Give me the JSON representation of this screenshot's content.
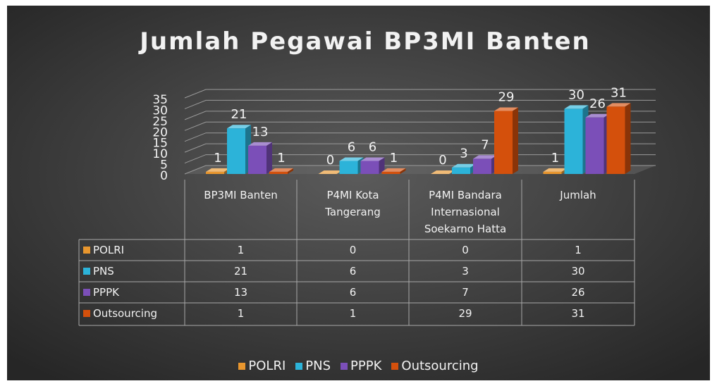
{
  "chart_data": {
    "type": "bar3d",
    "title": "Jumlah Pegawai BP3MI Banten",
    "categories": [
      "BP3MI Banten",
      "P4MI Kota Tangerang",
      "P4MI Bandara Internasional Soekarno Hatta",
      "Jumlah"
    ],
    "series": [
      {
        "name": "POLRI",
        "color": "#e8962e",
        "values": [
          1,
          0,
          0,
          1
        ]
      },
      {
        "name": "PNS",
        "color": "#2cb3d9",
        "values": [
          21,
          6,
          3,
          30
        ]
      },
      {
        "name": "PPPK",
        "color": "#7b4fb8",
        "values": [
          13,
          6,
          7,
          26
        ]
      },
      {
        "name": "Outsourcing",
        "color": "#d4500c",
        "values": [
          1,
          1,
          29,
          31
        ]
      }
    ],
    "ylim": [
      0,
      35
    ],
    "yticks": [
      0,
      5,
      10,
      15,
      20,
      25,
      30,
      35
    ],
    "grid": true,
    "data_table": true,
    "legend": "bottom"
  }
}
